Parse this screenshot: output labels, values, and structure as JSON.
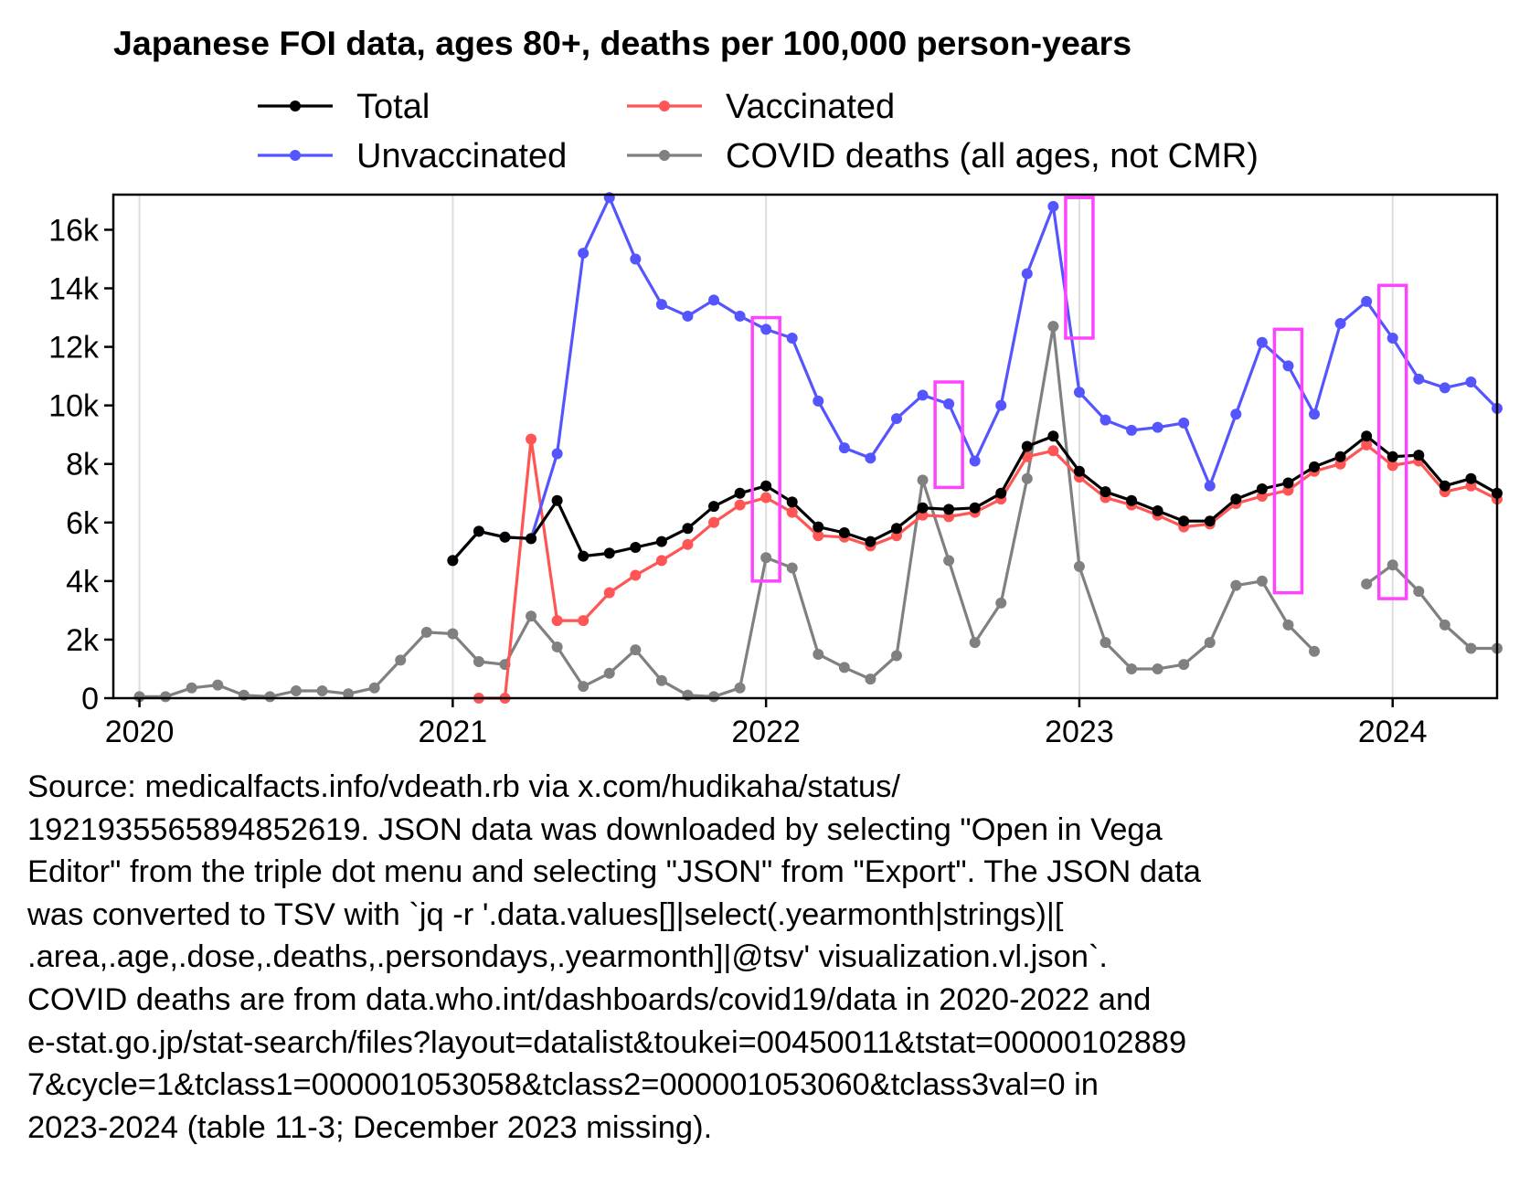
{
  "chart_data": {
    "type": "line",
    "title": "Japanese FOI data, ages 80+, deaths per 100,000 person-years",
    "xlabel": "",
    "ylabel": "",
    "x_axis": {
      "type": "date",
      "range": [
        "2019-12-01",
        "2024-05-01"
      ],
      "ticks": [
        {
          "value": "2020-01",
          "label": "2020"
        },
        {
          "value": "2021-01",
          "label": "2021"
        },
        {
          "value": "2022-01",
          "label": "2022"
        },
        {
          "value": "2023-01",
          "label": "2023"
        },
        {
          "value": "2024-01",
          "label": "2024"
        }
      ]
    },
    "y_axis": {
      "range": [
        0,
        17200
      ],
      "ticks": [
        {
          "value": 0,
          "label": "0"
        },
        {
          "value": 2000,
          "label": "2k"
        },
        {
          "value": 4000,
          "label": "4k"
        },
        {
          "value": 6000,
          "label": "6k"
        },
        {
          "value": 8000,
          "label": "8k"
        },
        {
          "value": 10000,
          "label": "10k"
        },
        {
          "value": 12000,
          "label": "12k"
        },
        {
          "value": 14000,
          "label": "14k"
        },
        {
          "value": 16000,
          "label": "16k"
        }
      ]
    },
    "grid": "vertical lines at year boundaries",
    "legend": {
      "placement": "top",
      "columns": 2
    },
    "series": [
      {
        "name": "Total",
        "color": "#000000",
        "start": "2021-01",
        "values": [
          4700,
          5700,
          5500,
          5450,
          6750,
          4850,
          4950,
          5150,
          5350,
          5800,
          6550,
          7000,
          7250,
          6700,
          5850,
          5650,
          5350,
          5800,
          6500,
          6450,
          6500,
          7000,
          8600,
          8950,
          7750,
          7050,
          6750,
          6400,
          6050,
          6050,
          6800,
          7150,
          7350,
          7900,
          8250,
          8950,
          8250,
          8300,
          7250,
          7500,
          7000
        ]
      },
      {
        "name": "Unvaccinated",
        "color": "#5555ff",
        "start": "2021-01",
        "values": [
          4700,
          5700,
          5500,
          5450,
          8350,
          15200,
          17100,
          15000,
          13450,
          13050,
          13600,
          13050,
          12600,
          12300,
          10150,
          8550,
          8200,
          9550,
          10350,
          10050,
          8100,
          10000,
          14500,
          16800,
          10450,
          9500,
          9150,
          9250,
          9400,
          7250,
          9700,
          12150,
          11350,
          9700,
          12800,
          13550,
          12300,
          10900,
          10600,
          10800,
          9900
        ]
      },
      {
        "name": "Vaccinated",
        "color": "#ff5555",
        "start": "2021-02",
        "values": [
          0,
          0,
          8850,
          2650,
          2650,
          3600,
          4200,
          4700,
          5250,
          6000,
          6600,
          6850,
          6350,
          5550,
          5500,
          5200,
          5550,
          6250,
          6200,
          6350,
          6800,
          8250,
          8450,
          7550,
          6850,
          6600,
          6250,
          5850,
          5950,
          6650,
          6900,
          7100,
          7750,
          8000,
          8650,
          7950,
          8100,
          7050,
          7250,
          6800
        ]
      },
      {
        "name": "COVID deaths (all ages, not CMR)",
        "color": "#808080",
        "start": "2020-01",
        "values": [
          50,
          50,
          350,
          450,
          100,
          50,
          250,
          250,
          150,
          350,
          1300,
          2250,
          2200,
          1250,
          1150,
          2800,
          1750,
          400,
          850,
          1650,
          600,
          100,
          50,
          350,
          4800,
          4450,
          1500,
          1050,
          650,
          1450,
          7450,
          4700,
          1900,
          3250,
          7500,
          12700,
          4500,
          1900,
          1000,
          1000,
          1150,
          1900,
          3850,
          4000,
          2500,
          1600,
          null,
          3900,
          4550,
          3650,
          2500,
          1700,
          1700
        ]
      }
    ],
    "highlight_color": "#ff44ff",
    "highlights": [
      {
        "month": "2022-01",
        "ymin": 4000,
        "ymax": 13000
      },
      {
        "month": "2022-08",
        "ymin": 7200,
        "ymax": 10800
      },
      {
        "month": "2023-01",
        "ymin": 12300,
        "ymax": 17100
      },
      {
        "month": "2023-09",
        "ymin": 3600,
        "ymax": 12600
      },
      {
        "month": "2024-01",
        "ymin": 3400,
        "ymax": 14100
      }
    ]
  },
  "source_note": "Source: medicalfacts.info/vdeath.rb via x.com/hudikaha/status/\n1921935565894852619. JSON data was downloaded by selecting \"Open in Vega\nEditor\" from the triple dot menu and selecting \"JSON\" from \"Export\". The JSON data\nwas converted to TSV with `jq -r '.data.values[]|select(.yearmonth|strings)|[\n.area,.age,.dose,.deaths,.persondays,.yearmonth]|@tsv' visualization.vl.json`.\nCOVID deaths are from data.who.int/dashboards/covid19/data in 2020-2022 and\ne-stat.go.jp/stat-search/files?layout=datalist&toukei=00450011&tstat=00000102889\n7&cycle=1&tclass1=000001053058&tclass2=000001053060&tclass3val=0 in\n2023-2024 (table 11-3; December 2023 missing)."
}
